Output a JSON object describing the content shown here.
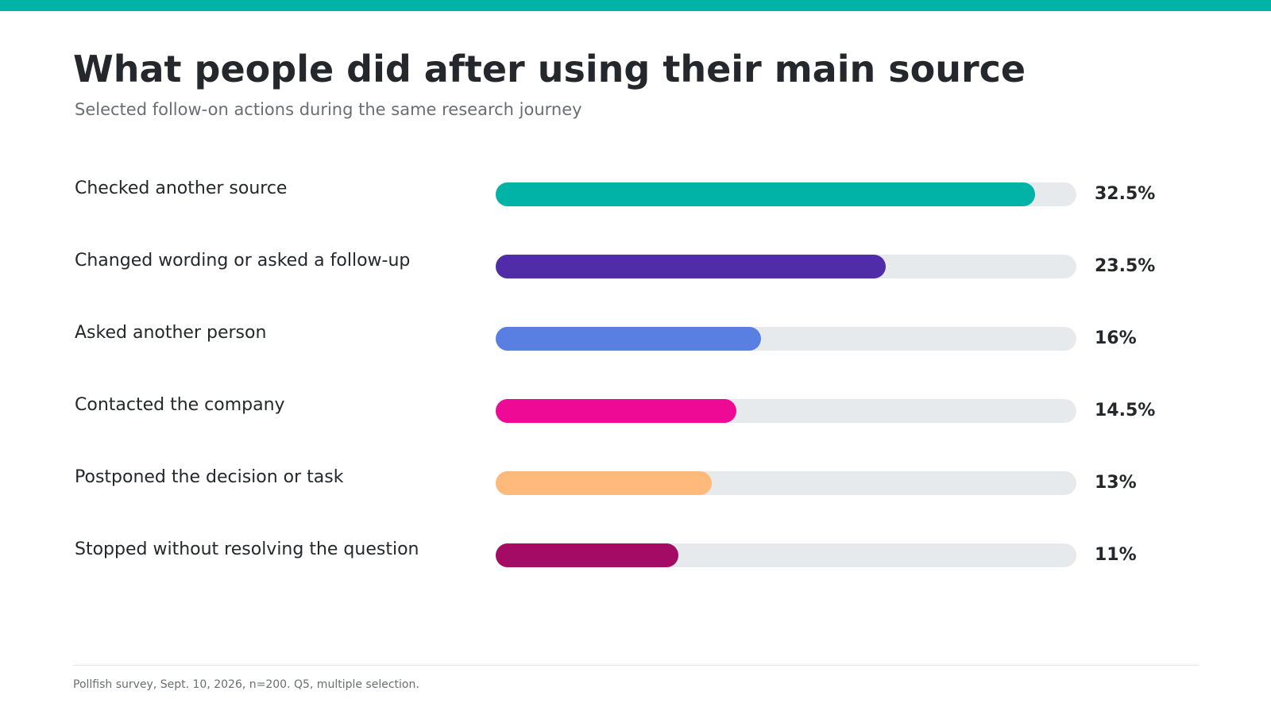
{
  "header": {
    "title": "What people did after using their main source",
    "subtitle": "Selected follow-on actions during the same research journey"
  },
  "footer": {
    "note": "Pollfish survey, Sept. 10, 2026, n=200. Q5, multiple selection."
  },
  "colors": {
    "accent_bar": "#00b3a6",
    "track": "#e7eaed"
  },
  "chart_data": {
    "type": "bar",
    "orientation": "horizontal",
    "categories": [
      "Checked another source",
      "Changed wording or asked a follow-up",
      "Asked another person",
      "Contacted the company",
      "Postponed the decision or task",
      "Stopped without resolving the question"
    ],
    "values": [
      32.5,
      23.5,
      16,
      14.5,
      13,
      11
    ],
    "value_labels": [
      "32.5%",
      "23.5%",
      "16%",
      "14.5%",
      "13%",
      "11%"
    ],
    "colors": [
      "#00b3a6",
      "#512ca8",
      "#5a7fe3",
      "#ee0a95",
      "#ffb97a",
      "#a30b65"
    ],
    "xlim": [
      0,
      35
    ],
    "grid": false,
    "legend": "none"
  }
}
